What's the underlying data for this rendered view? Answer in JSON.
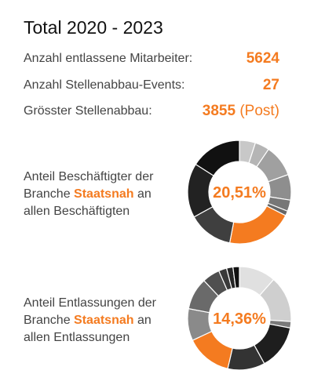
{
  "accent_color": "#F47B20",
  "title": "Total 2020 - 2023",
  "stats": [
    {
      "label": "Anzahl entlassene Mitarbeiter:",
      "value": "5624",
      "note": ""
    },
    {
      "label": "Anzahl Stellenabbau-Events:",
      "value": "27",
      "note": ""
    },
    {
      "label": "Grösster Stellenabbau:",
      "value": "3855",
      "note": "(Post)"
    }
  ],
  "donuts": [
    {
      "line1": "Anteil Beschäftigter der",
      "line2_prefix": "Branche ",
      "highlight": "Staatsnah",
      "line2_suffix": " an",
      "line3": "allen Beschäftigten",
      "center_text": "20,51%"
    },
    {
      "line1": "Anteil Entlassungen der",
      "line2_prefix": "Branche ",
      "highlight": "Staatsnah",
      "line2_suffix": " an",
      "line3": "allen Entlassungen",
      "center_text": "14,36%"
    }
  ],
  "chart_data": [
    {
      "type": "pie",
      "title": "",
      "highlight_value": 20.51,
      "slices": [
        {
          "value": 5.0,
          "color": "#C8C8C8",
          "highlight": false
        },
        {
          "value": 4.5,
          "color": "#B5B5B5",
          "highlight": false
        },
        {
          "value": 10.0,
          "color": "#A0A0A0",
          "highlight": false
        },
        {
          "value": 8.0,
          "color": "#8E8E8E",
          "highlight": false
        },
        {
          "value": 3.5,
          "color": "#777777",
          "highlight": false
        },
        {
          "value": 1.5,
          "color": "#666666",
          "highlight": false
        },
        {
          "value": 20.51,
          "color": "#F47B20",
          "highlight": true
        },
        {
          "value": 14.0,
          "color": "#3F3F3F",
          "highlight": false
        },
        {
          "value": 17.0,
          "color": "#222222",
          "highlight": false
        },
        {
          "value": 15.99,
          "color": "#111111",
          "highlight": false
        }
      ]
    },
    {
      "type": "pie",
      "title": "",
      "highlight_value": 14.36,
      "slices": [
        {
          "value": 11.5,
          "color": "#E0E0E0",
          "highlight": false
        },
        {
          "value": 14.5,
          "color": "#CFCFCF",
          "highlight": false
        },
        {
          "value": 2.0,
          "color": "#7A7A7A",
          "highlight": false
        },
        {
          "value": 14.0,
          "color": "#1E1E1E",
          "highlight": false
        },
        {
          "value": 11.64,
          "color": "#333333",
          "highlight": false
        },
        {
          "value": 14.36,
          "color": "#F47B20",
          "highlight": true
        },
        {
          "value": 10.0,
          "color": "#8A8A8A",
          "highlight": false
        },
        {
          "value": 10.0,
          "color": "#6A6A6A",
          "highlight": false
        },
        {
          "value": 5.5,
          "color": "#4F4F4F",
          "highlight": false
        },
        {
          "value": 2.5,
          "color": "#3A3A3A",
          "highlight": false
        },
        {
          "value": 2.0,
          "color": "#262626",
          "highlight": false
        },
        {
          "value": 2.0,
          "color": "#111111",
          "highlight": false
        }
      ]
    }
  ]
}
